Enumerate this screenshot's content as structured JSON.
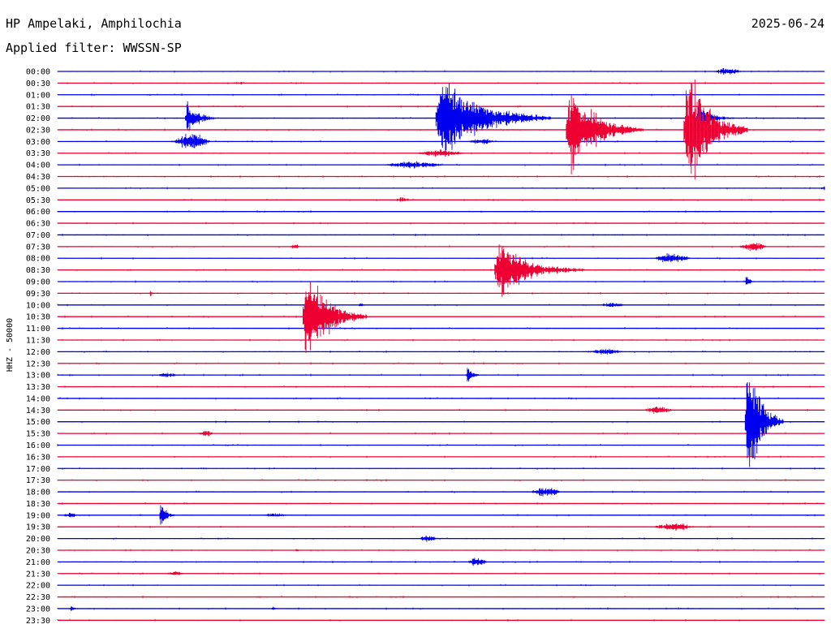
{
  "header": {
    "station": "HP Ampelaki, Amphilochia",
    "date": "2025-06-24",
    "filter_label": "Applied filter:",
    "filter_value": "WWSSN-SP"
  },
  "chart_data": {
    "type": "line",
    "subtype": "helicorder",
    "title": "HP Ampelaki, Amphilochia",
    "ylabel": "HHZ - 50000",
    "xlabel": "",
    "grid": false,
    "legend": "none",
    "row_minutes": 30,
    "row_labels": [
      "00:00",
      "00:30",
      "01:00",
      "01:30",
      "02:00",
      "02:30",
      "03:00",
      "03:30",
      "04:00",
      "04:30",
      "05:00",
      "05:30",
      "06:00",
      "06:30",
      "07:00",
      "07:30",
      "08:00",
      "08:30",
      "09:00",
      "09:30",
      "10:00",
      "10:30",
      "11:00",
      "11:30",
      "12:00",
      "12:30",
      "13:00",
      "13:30",
      "14:00",
      "14:30",
      "15:00",
      "15:30",
      "16:00",
      "16:30",
      "17:00",
      "17:30",
      "18:00",
      "18:30",
      "19:00",
      "19:30",
      "20:00",
      "20:30",
      "21:00",
      "21:30",
      "22:00",
      "22:30",
      "23:00",
      "23:30"
    ],
    "colors": {
      "even_rows": "#0000ee",
      "odd_rows": "#ee0033"
    },
    "events": [
      {
        "row": 0,
        "minute": 25.6,
        "amp": 5,
        "dur": 1.2,
        "kind": "burst"
      },
      {
        "row": 1,
        "minute": 6.8,
        "amp": 2,
        "dur": 0.6,
        "kind": "burst"
      },
      {
        "row": 4,
        "minute": 5.0,
        "amp": 28,
        "dur": 1.2,
        "kind": "quake"
      },
      {
        "row": 4,
        "minute": 14.8,
        "amp": 62,
        "dur": 4.5,
        "kind": "quake"
      },
      {
        "row": 4,
        "minute": 25.0,
        "amp": 20,
        "dur": 1.5,
        "kind": "quake"
      },
      {
        "row": 5,
        "minute": 19.9,
        "amp": 62,
        "dur": 3.0,
        "kind": "quake"
      },
      {
        "row": 5,
        "minute": 24.5,
        "amp": 90,
        "dur": 2.5,
        "kind": "quake"
      },
      {
        "row": 6,
        "minute": 4.5,
        "amp": 12,
        "dur": 1.5,
        "kind": "burst"
      },
      {
        "row": 6,
        "minute": 16.0,
        "amp": 4,
        "dur": 1.2,
        "kind": "burst"
      },
      {
        "row": 7,
        "minute": 14.0,
        "amp": 5,
        "dur": 2.0,
        "kind": "burst"
      },
      {
        "row": 8,
        "minute": 12.7,
        "amp": 5,
        "dur": 2.5,
        "kind": "burst"
      },
      {
        "row": 10,
        "minute": 29.8,
        "amp": 4,
        "dur": 0.8,
        "kind": "burst"
      },
      {
        "row": 11,
        "minute": 13.2,
        "amp": 4,
        "dur": 0.6,
        "kind": "burst"
      },
      {
        "row": 15,
        "minute": 9.1,
        "amp": 4,
        "dur": 0.4,
        "kind": "burst"
      },
      {
        "row": 15,
        "minute": 26.6,
        "amp": 6,
        "dur": 1.2,
        "kind": "burst"
      },
      {
        "row": 16,
        "minute": 23.3,
        "amp": 7,
        "dur": 1.5,
        "kind": "burst"
      },
      {
        "row": 17,
        "minute": 17.1,
        "amp": 40,
        "dur": 3.5,
        "kind": "quake"
      },
      {
        "row": 18,
        "minute": 26.9,
        "amp": 9,
        "dur": 0.5,
        "kind": "quake"
      },
      {
        "row": 19,
        "minute": 3.6,
        "amp": 5,
        "dur": 0.3,
        "kind": "quake"
      },
      {
        "row": 20,
        "minute": 11.8,
        "amp": 6,
        "dur": 0.3,
        "kind": "quake"
      },
      {
        "row": 20,
        "minute": 21.2,
        "amp": 4,
        "dur": 1.0,
        "kind": "burst"
      },
      {
        "row": 21,
        "minute": 9.6,
        "amp": 70,
        "dur": 2.5,
        "kind": "quake"
      },
      {
        "row": 24,
        "minute": 20.7,
        "amp": 4,
        "dur": 1.5,
        "kind": "burst"
      },
      {
        "row": 26,
        "minute": 16.0,
        "amp": 14,
        "dur": 0.6,
        "kind": "quake"
      },
      {
        "row": 26,
        "minute": 3.8,
        "amp": 3,
        "dur": 1.0,
        "kind": "burst"
      },
      {
        "row": 29,
        "minute": 22.9,
        "amp": 5,
        "dur": 1.2,
        "kind": "burst"
      },
      {
        "row": 30,
        "minute": 26.9,
        "amp": 95,
        "dur": 1.5,
        "kind": "quake"
      },
      {
        "row": 31,
        "minute": 5.5,
        "amp": 5,
        "dur": 0.6,
        "kind": "burst"
      },
      {
        "row": 36,
        "minute": 18.5,
        "amp": 7,
        "dur": 1.2,
        "kind": "burst"
      },
      {
        "row": 38,
        "minute": 4.0,
        "amp": 22,
        "dur": 0.6,
        "kind": "quake"
      },
      {
        "row": 38,
        "minute": 0.2,
        "amp": 4,
        "dur": 0.6,
        "kind": "burst"
      },
      {
        "row": 38,
        "minute": 8.0,
        "amp": 3,
        "dur": 1.0,
        "kind": "burst"
      },
      {
        "row": 39,
        "minute": 23.3,
        "amp": 6,
        "dur": 1.6,
        "kind": "burst"
      },
      {
        "row": 40,
        "minute": 14.1,
        "amp": 5,
        "dur": 0.8,
        "kind": "burst"
      },
      {
        "row": 41,
        "minute": 9.3,
        "amp": 5,
        "dur": 0.2,
        "kind": "quake"
      },
      {
        "row": 42,
        "minute": 16.0,
        "amp": 6,
        "dur": 0.8,
        "kind": "burst"
      },
      {
        "row": 43,
        "minute": 4.2,
        "amp": 3,
        "dur": 0.8,
        "kind": "burst"
      },
      {
        "row": 46,
        "minute": 0.5,
        "amp": 7,
        "dur": 0.3,
        "kind": "quake"
      },
      {
        "row": 46,
        "minute": 8.4,
        "amp": 5,
        "dur": 0.3,
        "kind": "quake"
      }
    ]
  }
}
